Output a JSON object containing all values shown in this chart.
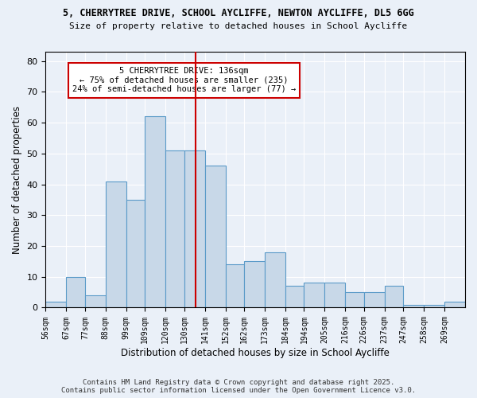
{
  "title_line1": "5, CHERRYTREE DRIVE, SCHOOL AYCLIFFE, NEWTON AYCLIFFE, DL5 6GG",
  "title_line2": "Size of property relative to detached houses in School Aycliffe",
  "xlabel": "Distribution of detached houses by size in School Aycliffe",
  "ylabel": "Number of detached properties",
  "bin_labels": [
    "56sqm",
    "67sqm",
    "77sqm",
    "88sqm",
    "99sqm",
    "109sqm",
    "120sqm",
    "130sqm",
    "141sqm",
    "152sqm",
    "162sqm",
    "173sqm",
    "184sqm",
    "194sqm",
    "205sqm",
    "216sqm",
    "226sqm",
    "237sqm",
    "247sqm",
    "258sqm",
    "269sqm"
  ],
  "bar_heights": [
    2,
    10,
    4,
    41,
    35,
    62,
    51,
    51,
    46,
    14,
    15,
    18,
    7,
    8,
    8,
    5,
    5,
    7,
    1,
    1,
    2
  ],
  "bar_fill_color": "#c8d8e8",
  "bar_edge_color": "#5a9ac8",
  "vline_x": 136,
  "vline_color": "#cc0000",
  "annotation_title": "5 CHERRYTREE DRIVE: 136sqm",
  "annotation_line2": "← 75% of detached houses are smaller (235)",
  "annotation_line3": "24% of semi-detached houses are larger (77) →",
  "annotation_box_edgecolor": "#cc0000",
  "ylim": [
    0,
    83
  ],
  "yticks": [
    0,
    10,
    20,
    30,
    40,
    50,
    60,
    70,
    80
  ],
  "bin_edges": [
    56,
    67,
    77,
    88,
    99,
    109,
    120,
    130,
    141,
    152,
    162,
    173,
    184,
    194,
    205,
    216,
    226,
    237,
    247,
    258,
    269,
    280
  ],
  "background_color": "#eaf0f8",
  "plot_bg_color": "#eaf0f8",
  "footer_line1": "Contains HM Land Registry data © Crown copyright and database right 2025.",
  "footer_line2": "Contains public sector information licensed under the Open Government Licence v3.0."
}
